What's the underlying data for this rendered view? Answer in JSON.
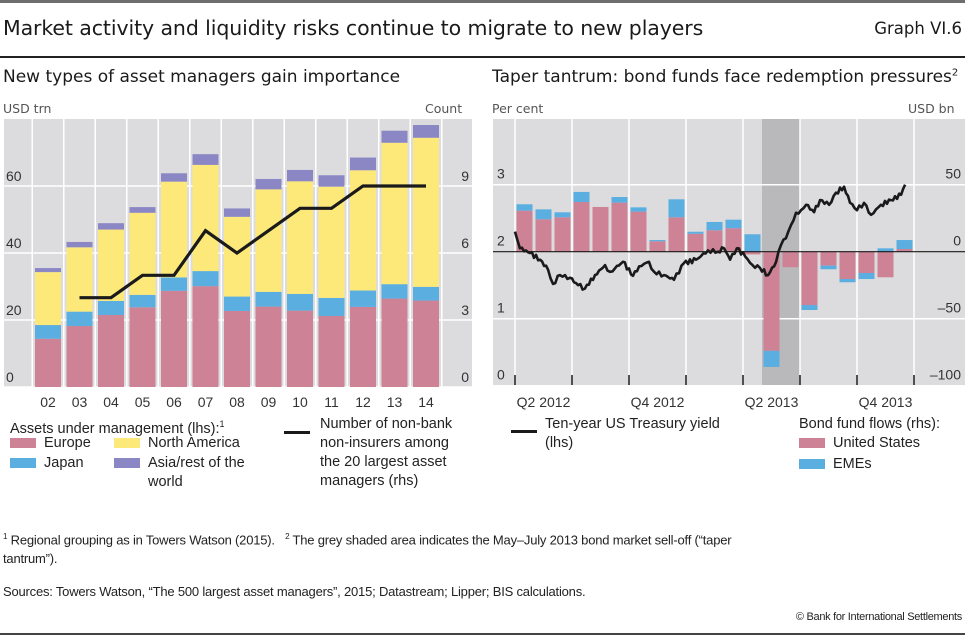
{
  "header": {
    "title": "Market activity and liquidity risks continue to migrate to new players",
    "graph_id": "Graph VI.6"
  },
  "colors": {
    "europe": "#cd8296",
    "japan": "#5aaee0",
    "north_america": "#fde97a",
    "asia_rest": "#8a87c4",
    "united_states": "#cd8296",
    "emes": "#5aaee0",
    "line": "#1a1a1a",
    "plot_bg": "#dcdcde",
    "shade": "#b9b9bc"
  },
  "chart_data": [
    {
      "type": "bar",
      "stacked": true,
      "title": "New types of asset managers gain importance",
      "ylabel_left": "USD trn",
      "ylabel_right": "Count",
      "ylim": [
        0,
        80
      ],
      "yticks_left": [
        "0",
        "20",
        "40",
        "60"
      ],
      "yticks_left_values": [
        0,
        20,
        40,
        60
      ],
      "ylim_right": [
        0,
        12
      ],
      "yticks_right": [
        "0",
        "3",
        "6",
        "9"
      ],
      "yticks_right_values": [
        0,
        3,
        6,
        9
      ],
      "grid": true,
      "categories": [
        "02",
        "03",
        "04",
        "05",
        "06",
        "07",
        "08",
        "09",
        "10",
        "11",
        "12",
        "13",
        "14"
      ],
      "legend_title": "Assets under management (lhs):",
      "legend_title_sup": "1",
      "series": [
        {
          "name": "Europe",
          "color_key": "europe",
          "values": [
            14.4,
            18.2,
            21.5,
            23.8,
            28.7,
            30.1,
            22.7,
            24.0,
            22.8,
            21.2,
            23.9,
            26.4,
            25.8
          ]
        },
        {
          "name": "Japan",
          "color_key": "japan",
          "values": [
            4.1,
            4.3,
            4.2,
            3.7,
            4.0,
            4.5,
            4.3,
            4.4,
            5.0,
            5.4,
            4.9,
            4.3,
            4.1
          ]
        },
        {
          "name": "North America",
          "color_key": "north_america",
          "values": [
            15.8,
            19.2,
            21.3,
            24.5,
            28.6,
            31.7,
            23.8,
            30.6,
            33.6,
            33.2,
            35.9,
            42.2,
            44.5
          ]
        },
        {
          "name": "Asia/rest of the world",
          "color_key": "asia_rest",
          "values": [
            1.2,
            1.6,
            1.9,
            1.7,
            2.5,
            3.2,
            2.5,
            3.1,
            3.4,
            3.4,
            3.8,
            3.6,
            3.8
          ]
        }
      ],
      "line_series": {
        "name": "Number of non-bank non-insurers among the 20 largest asset managers (rhs)",
        "axis": "right",
        "categories": [
          "03",
          "04",
          "05",
          "06",
          "07",
          "08",
          "09",
          "10",
          "11",
          "12",
          "13",
          "14"
        ],
        "values": [
          4,
          4,
          5,
          5,
          7,
          6,
          7,
          8,
          8,
          9,
          9,
          9
        ]
      },
      "legend_left": [
        {
          "label": "Europe",
          "color_key": "europe"
        },
        {
          "label": "North America",
          "color_key": "north_america"
        },
        {
          "label": "Japan",
          "color_key": "japan"
        },
        {
          "label": "Asia/rest of the world",
          "color_key": "asia_rest"
        }
      ],
      "legend_line_label": [
        "Number of non-bank",
        "non-insurers among",
        "the 20 largest asset",
        "managers (rhs)"
      ],
      "legend_asia_lines": [
        "Asia/rest of the",
        "world"
      ]
    },
    {
      "type": "bar+line",
      "stacked": true,
      "title": "Taper tantrum: bond funds face redemption pressures",
      "title_sup": "2",
      "ylabel_left": "Per cent",
      "ylabel_right": "USD bn",
      "ylim_left": [
        0,
        3.5
      ],
      "yticks_left": [
        "0",
        "1",
        "2",
        "3"
      ],
      "yticks_left_values": [
        0,
        1,
        2,
        3
      ],
      "ylim_right": [
        -100,
        75
      ],
      "yticks_right": [
        "–100",
        "–50",
        "0",
        "50"
      ],
      "yticks_right_values": [
        -100,
        -50,
        0,
        50
      ],
      "grid": true,
      "x_tick_labels": [
        "Q2 2012",
        "Q4 2012",
        "Q2 2013",
        "Q4 2013"
      ],
      "months": [
        "2012-04",
        "2012-05",
        "2012-06",
        "2012-07",
        "2012-08",
        "2012-09",
        "2012-10",
        "2012-11",
        "2012-12",
        "2013-01",
        "2013-02",
        "2013-03",
        "2013-04",
        "2013-05",
        "2013-06",
        "2013-07",
        "2013-08",
        "2013-09",
        "2013-10",
        "2013-11",
        "2013-12"
      ],
      "shaded_period": [
        "2013-05",
        "2013-07"
      ],
      "series": [
        {
          "name": "United States",
          "axis": "right",
          "color_key": "united_states",
          "values": [
            30.6,
            24.2,
            25.7,
            37.1,
            33.4,
            36.6,
            29.9,
            7.8,
            25.7,
            13.4,
            16.0,
            17.5,
            -2.0,
            -74.0,
            -11.6,
            -39.8,
            -10.4,
            -20.4,
            -15.9,
            -19.1,
            2.0
          ]
        },
        {
          "name": "EMEs",
          "axis": "right",
          "color_key": "emes",
          "values": [
            4.8,
            7.4,
            3.7,
            7.5,
            0.0,
            4.2,
            3.2,
            0.9,
            13.4,
            1.5,
            6.2,
            6.4,
            13.0,
            -12.0,
            0.0,
            -3.7,
            -2.7,
            -2.4,
            -4.5,
            2.5,
            6.7
          ]
        }
      ],
      "line_series": {
        "name": "Ten-year US Treasury yield (lhs)",
        "axis": "left",
        "x_months_from_2012_04": [
          0.0,
          0.26,
          0.79,
          1.32,
          1.74,
          2.0,
          2.37,
          2.89,
          3.32,
          3.68,
          4.21,
          4.74,
          5.0,
          5.26,
          5.68,
          6.21,
          6.53,
          7.05,
          7.32,
          7.84,
          8.37,
          8.89,
          9.53,
          10.16,
          10.68,
          11.0,
          11.32,
          11.68,
          12.11,
          12.5,
          12.89,
          13.32,
          13.74,
          14.0,
          14.26,
          14.53,
          14.79,
          15.05,
          15.32,
          15.74,
          16.05,
          16.53,
          16.89,
          17.32,
          17.63,
          18.0,
          18.37,
          18.74,
          19.26,
          19.79,
          20.32,
          20.53
        ],
        "values": [
          2.3,
          2.05,
          1.98,
          1.88,
          1.73,
          1.52,
          1.65,
          1.61,
          1.5,
          1.45,
          1.65,
          1.8,
          1.7,
          1.75,
          1.85,
          1.64,
          1.78,
          1.85,
          1.7,
          1.65,
          1.58,
          1.83,
          1.88,
          2.02,
          2.0,
          2.05,
          1.88,
          2.05,
          1.93,
          1.8,
          1.76,
          1.65,
          1.85,
          2.1,
          2.2,
          2.4,
          2.58,
          2.62,
          2.7,
          2.59,
          2.77,
          2.7,
          2.88,
          2.97,
          2.73,
          2.62,
          2.73,
          2.55,
          2.7,
          2.77,
          2.85,
          3.0
        ]
      },
      "legend_line_label": [
        "Ten-year US Treasury yield",
        "(lhs)"
      ],
      "legend_bar_title": "Bond fund flows (rhs):",
      "legend_bars": [
        {
          "label": "United States",
          "color_key": "united_states"
        },
        {
          "label": "EMEs",
          "color_key": "emes"
        }
      ]
    }
  ],
  "footnotes": {
    "note1_sup": "1",
    "note1": "Regional grouping as in Towers Watson (2015).",
    "note2_sup": "2",
    "note2_line1": "The grey shaded area indicates the May–July 2013 bond market sell-off (“taper",
    "note2_line2": "tantrum”).",
    "sources": "Sources: Towers Watson, “The 500 largest asset managers”, 2015; Datastream; Lipper; BIS calculations.",
    "copyright": "© Bank for International Settlements"
  }
}
